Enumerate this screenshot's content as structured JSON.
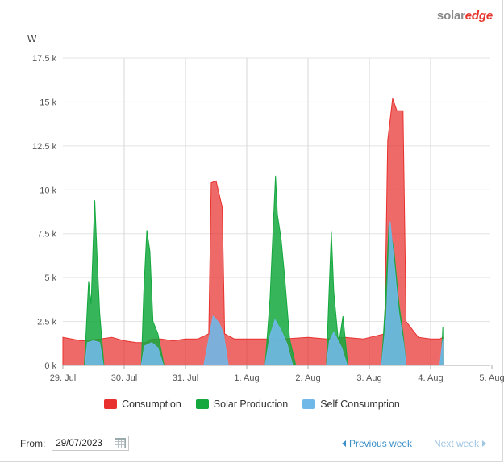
{
  "brand": {
    "part1": "solar",
    "part2": "edge"
  },
  "chart_data": {
    "type": "area",
    "ylabel": "W",
    "ylim": [
      0,
      17500
    ],
    "yticks": [
      "0 k",
      "2.5 k",
      "5 k",
      "7.5 k",
      "10 k",
      "12.5 k",
      "15 k",
      "17.5 k"
    ],
    "xticks": [
      "29. Jul",
      "30. Jul",
      "31. Jul",
      "1. Aug",
      "2. Aug",
      "3. Aug",
      "4. Aug",
      "5. Aug"
    ],
    "x_unit": "days from 29. Jul",
    "grid": true,
    "legend_position": "bottom",
    "series": [
      {
        "name": "Consumption",
        "color": "#e8312e",
        "points": [
          [
            0,
            1600
          ],
          [
            0.3,
            1400
          ],
          [
            0.6,
            1500
          ],
          [
            0.8,
            1600
          ],
          [
            1.0,
            1400
          ],
          [
            1.2,
            1300
          ],
          [
            1.35,
            1300
          ],
          [
            1.45,
            1500
          ],
          [
            1.6,
            1500
          ],
          [
            1.8,
            1400
          ],
          [
            2.0,
            1500
          ],
          [
            2.2,
            1500
          ],
          [
            2.38,
            1800
          ],
          [
            2.42,
            10400
          ],
          [
            2.5,
            10500
          ],
          [
            2.6,
            9000
          ],
          [
            2.64,
            1800
          ],
          [
            2.8,
            1500
          ],
          [
            3.0,
            1500
          ],
          [
            3.3,
            1500
          ],
          [
            3.6,
            1500
          ],
          [
            4.0,
            1600
          ],
          [
            4.3,
            1500
          ],
          [
            4.6,
            1600
          ],
          [
            4.9,
            1500
          ],
          [
            5.25,
            1800
          ],
          [
            5.3,
            12800
          ],
          [
            5.38,
            15200
          ],
          [
            5.45,
            14500
          ],
          [
            5.55,
            14500
          ],
          [
            5.6,
            2500
          ],
          [
            5.8,
            1600
          ],
          [
            6.0,
            1500
          ],
          [
            6.15,
            1500
          ],
          [
            6.2,
            1600
          ]
        ]
      },
      {
        "name": "Solar Production",
        "color": "#14a83e",
        "points": [
          [
            0.35,
            0
          ],
          [
            0.38,
            2000
          ],
          [
            0.42,
            4800
          ],
          [
            0.46,
            3500
          ],
          [
            0.5,
            7600
          ],
          [
            0.52,
            9400
          ],
          [
            0.56,
            6000
          ],
          [
            0.6,
            3000
          ],
          [
            0.67,
            0
          ],
          [
            1.28,
            0
          ],
          [
            1.32,
            4200
          ],
          [
            1.37,
            7700
          ],
          [
            1.42,
            6500
          ],
          [
            1.47,
            2500
          ],
          [
            1.55,
            1800
          ],
          [
            1.65,
            0
          ],
          [
            3.3,
            0
          ],
          [
            3.38,
            3800
          ],
          [
            3.43,
            7800
          ],
          [
            3.47,
            10800
          ],
          [
            3.5,
            8600
          ],
          [
            3.56,
            7200
          ],
          [
            3.62,
            5000
          ],
          [
            3.7,
            1500
          ],
          [
            3.8,
            0
          ],
          [
            4.3,
            0
          ],
          [
            4.33,
            3000
          ],
          [
            4.38,
            7600
          ],
          [
            4.42,
            4200
          ],
          [
            4.5,
            1200
          ],
          [
            4.57,
            2800
          ],
          [
            4.65,
            0
          ],
          [
            5.2,
            0
          ],
          [
            5.26,
            3500
          ],
          [
            5.32,
            8000
          ],
          [
            5.4,
            6600
          ],
          [
            5.48,
            3600
          ],
          [
            5.55,
            1800
          ],
          [
            5.6,
            0
          ],
          [
            6.17,
            0
          ],
          [
            6.2,
            2200
          ]
        ]
      },
      {
        "name": "Self Consumption",
        "color": "#6fb8e8",
        "points": [
          [
            0.36,
            0
          ],
          [
            0.4,
            1300
          ],
          [
            0.5,
            1400
          ],
          [
            0.6,
            1300
          ],
          [
            0.66,
            0
          ],
          [
            1.28,
            0
          ],
          [
            1.33,
            1100
          ],
          [
            1.45,
            1300
          ],
          [
            1.55,
            1000
          ],
          [
            1.64,
            0
          ],
          [
            2.3,
            0
          ],
          [
            2.38,
            1500
          ],
          [
            2.45,
            2800
          ],
          [
            2.55,
            2400
          ],
          [
            2.62,
            1800
          ],
          [
            2.7,
            0
          ],
          [
            3.3,
            0
          ],
          [
            3.38,
            1700
          ],
          [
            3.46,
            2600
          ],
          [
            3.56,
            2000
          ],
          [
            3.66,
            1200
          ],
          [
            3.75,
            0
          ],
          [
            4.3,
            0
          ],
          [
            4.35,
            1400
          ],
          [
            4.42,
            1900
          ],
          [
            4.55,
            1000
          ],
          [
            4.64,
            0
          ],
          [
            5.2,
            0
          ],
          [
            5.28,
            2800
          ],
          [
            5.34,
            8200
          ],
          [
            5.4,
            6000
          ],
          [
            5.48,
            3000
          ],
          [
            5.56,
            1200
          ],
          [
            5.6,
            0
          ],
          [
            6.15,
            0
          ],
          [
            6.2,
            1500
          ]
        ]
      }
    ]
  },
  "legend": [
    {
      "label": "Consumption",
      "color": "#e8312e"
    },
    {
      "label": "Solar Production",
      "color": "#14a83e"
    },
    {
      "label": "Self Consumption",
      "color": "#6fb8e8"
    }
  ],
  "footer": {
    "from_label": "From:",
    "date_value": "29/07/2023",
    "previous_label": "Previous week",
    "next_label": "Next week"
  }
}
